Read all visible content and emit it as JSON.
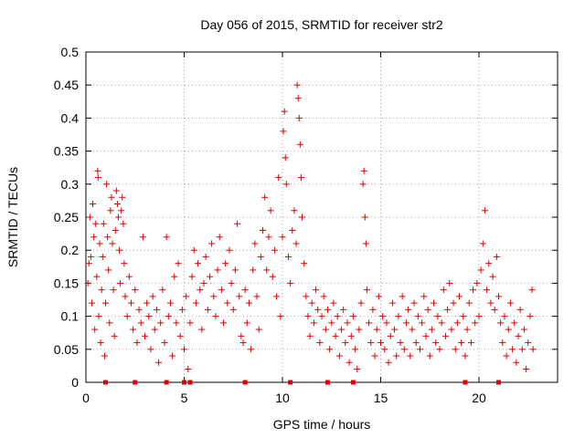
{
  "chart_data": {
    "type": "scatter",
    "title": "Day 056 of 2015, SRMTID for receiver str2",
    "xlabel": "GPS time / hours",
    "ylabel": "SRMTID / TECUs",
    "xlim": [
      0,
      24
    ],
    "ylim": [
      0,
      0.5
    ],
    "x_ticks": [
      0,
      5,
      10,
      15,
      20
    ],
    "x_tick_labels": [
      "0",
      "5",
      "10",
      "15",
      "20"
    ],
    "y_ticks": [
      0,
      0.05,
      0.1,
      0.15,
      0.2,
      0.25,
      0.3,
      0.35,
      0.4,
      0.45,
      0.5
    ],
    "y_tick_labels": [
      "0",
      "0.05",
      "0.1",
      "0.15",
      "0.2",
      "0.25",
      "0.3",
      "0.35",
      "0.4",
      "0.45",
      "0.5"
    ],
    "grid": true,
    "marker": "+",
    "color": "#e00000",
    "series": [
      {
        "name": "SRMTID",
        "points": [
          [
            0.1,
            0.15
          ],
          [
            0.15,
            0.18
          ],
          [
            0.2,
            0.25
          ],
          [
            0.25,
            0.19
          ],
          [
            0.3,
            0.12
          ],
          [
            0.35,
            0.27
          ],
          [
            0.4,
            0.22
          ],
          [
            0.45,
            0.08
          ],
          [
            0.5,
            0.24
          ],
          [
            0.55,
            0.16
          ],
          [
            0.6,
            0.32
          ],
          [
            0.62,
            0.31
          ],
          [
            0.65,
            0.1
          ],
          [
            0.7,
            0.21
          ],
          [
            0.75,
            0.06
          ],
          [
            0.8,
            0.14
          ],
          [
            0.85,
            0.19
          ],
          [
            0.9,
            0.24
          ],
          [
            0.95,
            0.04
          ],
          [
            1.0,
            0.12
          ],
          [
            1.05,
            0.3
          ],
          [
            1.1,
            0.22
          ],
          [
            1.15,
            0.17
          ],
          [
            1.2,
            0.09
          ],
          [
            1.25,
            0.26
          ],
          [
            1.3,
            0.28
          ],
          [
            1.35,
            0.21
          ],
          [
            1.4,
            0.14
          ],
          [
            1.45,
            0.07
          ],
          [
            1.5,
            0.23
          ],
          [
            1.55,
            0.29
          ],
          [
            1.6,
            0.27
          ],
          [
            1.65,
            0.25
          ],
          [
            1.7,
            0.2
          ],
          [
            1.75,
            0.15
          ],
          [
            1.8,
            0.26
          ],
          [
            1.85,
            0.28
          ],
          [
            1.9,
            0.24
          ],
          [
            1.95,
            0.18
          ],
          [
            2.0,
            0.13
          ],
          [
            2.1,
            0.1
          ],
          [
            2.2,
            0.16
          ],
          [
            2.3,
            0.12
          ],
          [
            2.4,
            0.08
          ],
          [
            2.5,
            0.14
          ],
          [
            2.6,
            0.06
          ],
          [
            2.7,
            0.11
          ],
          [
            2.8,
            0.09
          ],
          [
            2.9,
            0.22
          ],
          [
            3.0,
            0.07
          ],
          [
            3.1,
            0.12
          ],
          [
            3.2,
            0.1
          ],
          [
            3.3,
            0.05
          ],
          [
            3.4,
            0.13
          ],
          [
            3.5,
            0.08
          ],
          [
            3.6,
            0.11
          ],
          [
            3.7,
            0.03
          ],
          [
            3.8,
            0.09
          ],
          [
            3.9,
            0.14
          ],
          [
            4.0,
            0.06
          ],
          [
            4.1,
            0.22
          ],
          [
            4.2,
            0.1
          ],
          [
            4.3,
            0.12
          ],
          [
            4.4,
            0.04
          ],
          [
            4.5,
            0.16
          ],
          [
            4.6,
            0.09
          ],
          [
            4.7,
            0.18
          ],
          [
            4.8,
            0.07
          ],
          [
            4.9,
            0.11
          ],
          [
            5.0,
            0.05
          ],
          [
            5.1,
            0.13
          ],
          [
            5.2,
            0.02
          ],
          [
            5.3,
            0.09
          ],
          [
            5.4,
            0.16
          ],
          [
            5.5,
            0.2
          ],
          [
            5.6,
            0.12
          ],
          [
            5.7,
            0.18
          ],
          [
            5.8,
            0.14
          ],
          [
            5.9,
            0.08
          ],
          [
            6.0,
            0.15
          ],
          [
            6.1,
            0.19
          ],
          [
            6.2,
            0.11
          ],
          [
            6.3,
            0.16
          ],
          [
            6.4,
            0.21
          ],
          [
            6.5,
            0.13
          ],
          [
            6.6,
            0.1
          ],
          [
            6.7,
            0.17
          ],
          [
            6.8,
            0.22
          ],
          [
            6.9,
            0.14
          ],
          [
            7.0,
            0.09
          ],
          [
            7.1,
            0.18
          ],
          [
            7.2,
            0.12
          ],
          [
            7.3,
            0.2
          ],
          [
            7.4,
            0.15
          ],
          [
            7.5,
            0.11
          ],
          [
            7.6,
            0.17
          ],
          [
            7.7,
            0.24
          ],
          [
            7.8,
            0.13
          ],
          [
            7.9,
            0.07
          ],
          [
            8.0,
            0.06
          ],
          [
            8.1,
            0.14
          ],
          [
            8.2,
            0.09
          ],
          [
            8.3,
            0.12
          ],
          [
            8.4,
            0.05
          ],
          [
            8.5,
            0.17
          ],
          [
            8.6,
            0.21
          ],
          [
            8.7,
            0.13
          ],
          [
            8.8,
            0.08
          ],
          [
            8.9,
            0.19
          ],
          [
            9.0,
            0.23
          ],
          [
            9.1,
            0.28
          ],
          [
            9.2,
            0.17
          ],
          [
            9.3,
            0.22
          ],
          [
            9.4,
            0.26
          ],
          [
            9.5,
            0.16
          ],
          [
            9.6,
            0.2
          ],
          [
            9.7,
            0.13
          ],
          [
            9.8,
            0.31
          ],
          [
            9.9,
            0.1
          ],
          [
            10.0,
            0.22
          ],
          [
            10.05,
            0.38
          ],
          [
            10.1,
            0.41
          ],
          [
            10.15,
            0.34
          ],
          [
            10.2,
            0.3
          ],
          [
            10.3,
            0.19
          ],
          [
            10.4,
            0.15
          ],
          [
            10.5,
            0.23
          ],
          [
            10.6,
            0.26
          ],
          [
            10.7,
            0.21
          ],
          [
            10.75,
            0.45
          ],
          [
            10.8,
            0.43
          ],
          [
            10.85,
            0.4
          ],
          [
            10.9,
            0.36
          ],
          [
            10.95,
            0.31
          ],
          [
            11.0,
            0.25
          ],
          [
            11.1,
            0.18
          ],
          [
            11.2,
            0.13
          ],
          [
            11.3,
            0.1
          ],
          [
            11.4,
            0.07
          ],
          [
            11.5,
            0.12
          ],
          [
            11.6,
            0.09
          ],
          [
            11.7,
            0.14
          ],
          [
            11.8,
            0.11
          ],
          [
            11.9,
            0.06
          ],
          [
            12.0,
            0.1
          ],
          [
            12.1,
            0.13
          ],
          [
            12.2,
            0.08
          ],
          [
            12.3,
            0.11
          ],
          [
            12.4,
            0.05
          ],
          [
            12.5,
            0.09
          ],
          [
            12.6,
            0.12
          ],
          [
            12.7,
            0.07
          ],
          [
            12.8,
            0.1
          ],
          [
            12.9,
            0.04
          ],
          [
            13.0,
            0.08
          ],
          [
            13.1,
            0.11
          ],
          [
            13.2,
            0.06
          ],
          [
            13.3,
            0.09
          ],
          [
            13.4,
            0.03
          ],
          [
            13.5,
            0.07
          ],
          [
            13.6,
            0.1
          ],
          [
            13.7,
            0.05
          ],
          [
            13.8,
            0.02
          ],
          [
            13.9,
            0.08
          ],
          [
            14.0,
            0.12
          ],
          [
            14.1,
            0.3
          ],
          [
            14.15,
            0.32
          ],
          [
            14.2,
            0.25
          ],
          [
            14.25,
            0.21
          ],
          [
            14.3,
            0.14
          ],
          [
            14.4,
            0.09
          ],
          [
            14.5,
            0.06
          ],
          [
            14.6,
            0.11
          ],
          [
            14.7,
            0.04
          ],
          [
            14.8,
            0.08
          ],
          [
            14.9,
            0.13
          ],
          [
            15.0,
            0.06
          ],
          [
            15.1,
            0.1
          ],
          [
            15.2,
            0.05
          ],
          [
            15.3,
            0.09
          ],
          [
            15.4,
            0.03
          ],
          [
            15.5,
            0.07
          ],
          [
            15.6,
            0.12
          ],
          [
            15.7,
            0.08
          ],
          [
            15.8,
            0.04
          ],
          [
            15.9,
            0.1
          ],
          [
            16.0,
            0.06
          ],
          [
            16.1,
            0.13
          ],
          [
            16.2,
            0.05
          ],
          [
            16.3,
            0.09
          ],
          [
            16.4,
            0.11
          ],
          [
            16.5,
            0.04
          ],
          [
            16.6,
            0.08
          ],
          [
            16.7,
            0.12
          ],
          [
            16.8,
            0.06
          ],
          [
            16.9,
            0.1
          ],
          [
            17.0,
            0.05
          ],
          [
            17.1,
            0.09
          ],
          [
            17.2,
            0.13
          ],
          [
            17.3,
            0.07
          ],
          [
            17.4,
            0.11
          ],
          [
            17.5,
            0.04
          ],
          [
            17.6,
            0.08
          ],
          [
            17.7,
            0.12
          ],
          [
            17.8,
            0.06
          ],
          [
            17.9,
            0.1
          ],
          [
            18.0,
            0.05
          ],
          [
            18.1,
            0.09
          ],
          [
            18.2,
            0.14
          ],
          [
            18.3,
            0.07
          ],
          [
            18.4,
            0.11
          ],
          [
            18.5,
            0.15
          ],
          [
            18.6,
            0.08
          ],
          [
            18.7,
            0.12
          ],
          [
            18.8,
            0.05
          ],
          [
            18.9,
            0.09
          ],
          [
            19.0,
            0.13
          ],
          [
            19.1,
            0.06
          ],
          [
            19.2,
            0.1
          ],
          [
            19.3,
            0.04
          ],
          [
            19.4,
            0.08
          ],
          [
            19.5,
            0.12
          ],
          [
            19.6,
            0.06
          ],
          [
            19.7,
            0.14
          ],
          [
            19.8,
            0.09
          ],
          [
            19.9,
            0.15
          ],
          [
            20.0,
            0.1
          ],
          [
            20.1,
            0.17
          ],
          [
            20.2,
            0.21
          ],
          [
            20.3,
            0.26
          ],
          [
            20.4,
            0.14
          ],
          [
            20.5,
            0.18
          ],
          [
            20.6,
            0.12
          ],
          [
            20.7,
            0.16
          ],
          [
            20.8,
            0.11
          ],
          [
            20.9,
            0.19
          ],
          [
            21.0,
            0.13
          ],
          [
            21.1,
            0.09
          ],
          [
            21.2,
            0.06
          ],
          [
            21.3,
            0.1
          ],
          [
            21.4,
            0.04
          ],
          [
            21.5,
            0.08
          ],
          [
            21.6,
            0.12
          ],
          [
            21.7,
            0.05
          ],
          [
            21.8,
            0.09
          ],
          [
            21.9,
            0.03
          ],
          [
            22.0,
            0.07
          ],
          [
            22.1,
            0.11
          ],
          [
            22.2,
            0.05
          ],
          [
            22.3,
            0.08
          ],
          [
            22.4,
            0.02
          ],
          [
            22.5,
            0.06
          ],
          [
            22.6,
            0.1
          ],
          [
            22.7,
            0.14
          ],
          [
            22.75,
            0.05
          ]
        ]
      }
    ],
    "zero_markers_x": [
      1.0,
      2.5,
      4.1,
      5.0,
      5.3,
      8.1,
      10.4,
      12.3,
      13.6,
      19.3,
      21.0
    ]
  }
}
